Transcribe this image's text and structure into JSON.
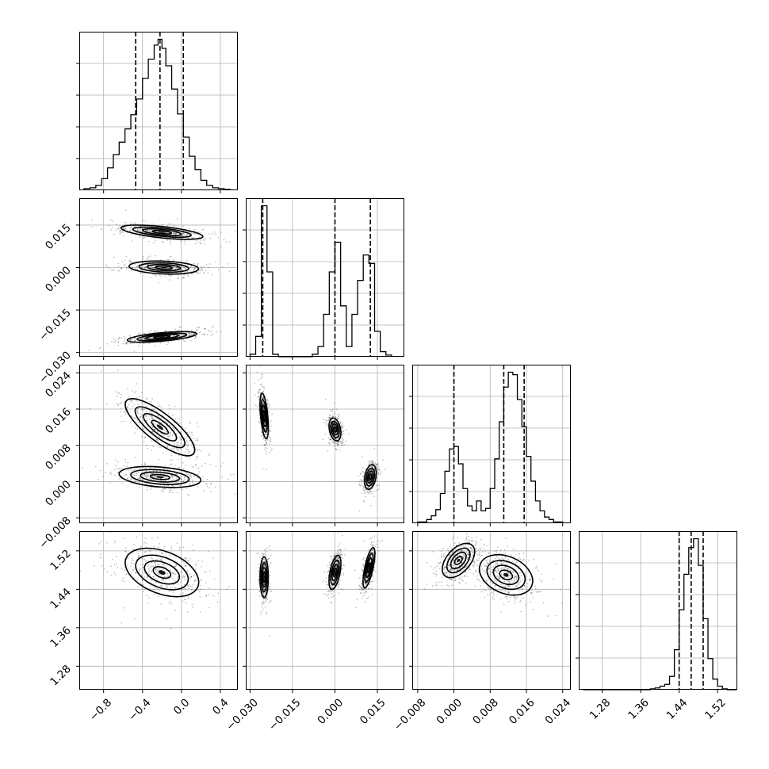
{
  "chart_data": {
    "type": "corner",
    "title": "",
    "grid": true,
    "parameters": [
      {
        "index": 0,
        "range": [
          -1.05,
          0.58
        ],
        "ticks": [
          -0.8,
          -0.4,
          0.0,
          0.4
        ],
        "tick_labels": [
          "−0.8",
          "−0.4",
          "0.0",
          "0.4"
        ]
      },
      {
        "index": 1,
        "range": [
          -0.0315,
          0.0245
        ],
        "ticks": [
          -0.03,
          -0.015,
          0.0,
          0.015
        ],
        "tick_labels": [
          "−0.030",
          "−0.015",
          "0.000",
          "0.015"
        ]
      },
      {
        "index": 2,
        "range": [
          -0.0092,
          0.0258
        ],
        "ticks": [
          -0.008,
          0.0,
          0.008,
          0.016,
          0.024
        ],
        "tick_labels": [
          "−0.008",
          "0.000",
          "0.008",
          "0.016",
          "0.024"
        ]
      },
      {
        "index": 3,
        "range": [
          1.231,
          1.561
        ],
        "ticks": [
          1.28,
          1.36,
          1.44,
          1.52
        ],
        "tick_labels": [
          "1.28",
          "1.36",
          "1.44",
          "1.52"
        ]
      }
    ],
    "quantiles": [
      [
        -0.47,
        -0.22,
        0.02
      ],
      [
        -0.0255,
        0.0,
        0.0125
      ],
      [
        0.0,
        0.011,
        0.0155
      ],
      [
        1.44,
        1.465,
        1.49
      ]
    ],
    "histograms": [
      {
        "param": 0,
        "bins": [
          -1.0,
          -0.94,
          -0.88,
          -0.82,
          -0.76,
          -0.7,
          -0.64,
          -0.58,
          -0.52,
          -0.46,
          -0.4,
          -0.34,
          -0.28,
          -0.24,
          -0.2,
          -0.16,
          -0.1,
          -0.04,
          0.02,
          0.08,
          0.14,
          0.2,
          0.26,
          0.32,
          0.38,
          0.44,
          0.5
        ],
        "counts": [
          2,
          3,
          6,
          14,
          27,
          43,
          58,
          74,
          91,
          110,
          135,
          158,
          175,
          182,
          171,
          150,
          122,
          92,
          64,
          41,
          25,
          12,
          6,
          3,
          2,
          1
        ]
      },
      {
        "param": 1,
        "bins": [
          -0.03,
          -0.028,
          -0.026,
          -0.024,
          -0.022,
          -0.02,
          -0.018,
          -0.016,
          -0.014,
          -0.012,
          -0.01,
          -0.008,
          -0.006,
          -0.004,
          -0.002,
          0.0,
          0.002,
          0.004,
          0.006,
          0.008,
          0.01,
          0.012,
          0.014,
          0.016,
          0.018,
          0.02
        ],
        "counts": [
          3,
          24,
          178,
          100,
          3,
          0,
          0,
          0,
          0,
          0,
          0,
          3,
          12,
          50,
          100,
          135,
          60,
          12,
          50,
          90,
          120,
          110,
          30,
          6,
          2
        ]
      },
      {
        "param": 2,
        "bins": [
          -0.008,
          -0.007,
          -0.006,
          -0.005,
          -0.004,
          -0.003,
          -0.002,
          -0.001,
          0.0,
          0.001,
          0.002,
          0.003,
          0.004,
          0.005,
          0.006,
          0.007,
          0.008,
          0.009,
          0.01,
          0.011,
          0.012,
          0.013,
          0.014,
          0.015,
          0.016,
          0.017,
          0.018,
          0.019,
          0.02,
          0.021,
          0.022,
          0.023,
          0.024
        ],
        "counts": [
          1,
          1,
          3,
          6,
          11,
          24,
          42,
          60,
          62,
          48,
          28,
          14,
          10,
          18,
          10,
          12,
          28,
          52,
          82,
          110,
          122,
          120,
          100,
          78,
          54,
          34,
          18,
          10,
          5,
          3,
          1,
          1
        ]
      },
      {
        "param": 3,
        "bins": [
          1.24,
          1.25,
          1.26,
          1.27,
          1.28,
          1.29,
          1.3,
          1.31,
          1.32,
          1.33,
          1.34,
          1.35,
          1.36,
          1.37,
          1.38,
          1.39,
          1.4,
          1.41,
          1.42,
          1.43,
          1.44,
          1.45,
          1.46,
          1.47,
          1.48,
          1.49,
          1.5,
          1.51,
          1.52,
          1.53,
          1.54,
          1.55,
          1.56
        ],
        "counts": [
          0,
          0,
          0,
          0,
          0,
          0,
          0,
          0,
          0,
          0,
          0,
          0,
          0,
          0,
          1,
          2,
          4,
          6,
          15,
          45,
          90,
          130,
          160,
          170,
          140,
          80,
          35,
          12,
          4,
          1,
          0,
          0
        ]
      }
    ],
    "joint_clusters": [
      {
        "x_param": 0,
        "y_param": 1,
        "modes": [
          {
            "cx": -0.2,
            "cy": 0.0125,
            "sx": 0.2,
            "sy": 0.0012,
            "rho": -0.6
          },
          {
            "cx": -0.18,
            "cy": 0.0,
            "sx": 0.17,
            "sy": 0.0011,
            "rho": -0.2
          },
          {
            "cx": -0.2,
            "cy": -0.0245,
            "sx": 0.17,
            "sy": 0.0009,
            "rho": 0.6
          }
        ]
      },
      {
        "x_param": 0,
        "y_param": 2,
        "modes": [
          {
            "cx": -0.22,
            "cy": 0.012,
            "sx": 0.17,
            "sy": 0.003,
            "rho": -0.8
          },
          {
            "cx": -0.22,
            "cy": 0.001,
            "sx": 0.2,
            "sy": 0.0011,
            "rho": -0.3
          }
        ]
      },
      {
        "x_param": 0,
        "y_param": 3,
        "modes": [
          {
            "cx": -0.2,
            "cy": 1.475,
            "sx": 0.18,
            "sy": 0.024,
            "rho": -0.4
          }
        ]
      },
      {
        "x_param": 1,
        "y_param": 2,
        "modes": [
          {
            "cx": -0.025,
            "cy": 0.0145,
            "sx": 0.0007,
            "sy": 0.0024,
            "rho": -0.5
          },
          {
            "cx": 0.0,
            "cy": 0.0115,
            "sx": 0.001,
            "sy": 0.0012,
            "rho": -0.3
          },
          {
            "cx": 0.0125,
            "cy": 0.001,
            "sx": 0.001,
            "sy": 0.0013,
            "rho": 0.3
          }
        ]
      },
      {
        "x_param": 1,
        "y_param": 3,
        "modes": [
          {
            "cx": -0.025,
            "cy": 1.465,
            "sx": 0.0007,
            "sy": 0.02,
            "rho": 0.0
          },
          {
            "cx": 0.0,
            "cy": 1.475,
            "sx": 0.001,
            "sy": 0.017,
            "rho": 0.5
          },
          {
            "cx": 0.012,
            "cy": 1.485,
            "sx": 0.001,
            "sy": 0.02,
            "rho": 0.7
          }
        ]
      },
      {
        "x_param": 2,
        "y_param": 3,
        "modes": [
          {
            "cx": 0.001,
            "cy": 1.5,
            "sx": 0.0017,
            "sy": 0.017,
            "rho": 0.5
          },
          {
            "cx": 0.0115,
            "cy": 1.47,
            "sx": 0.0028,
            "sy": 0.02,
            "rho": -0.3
          }
        ]
      }
    ]
  }
}
